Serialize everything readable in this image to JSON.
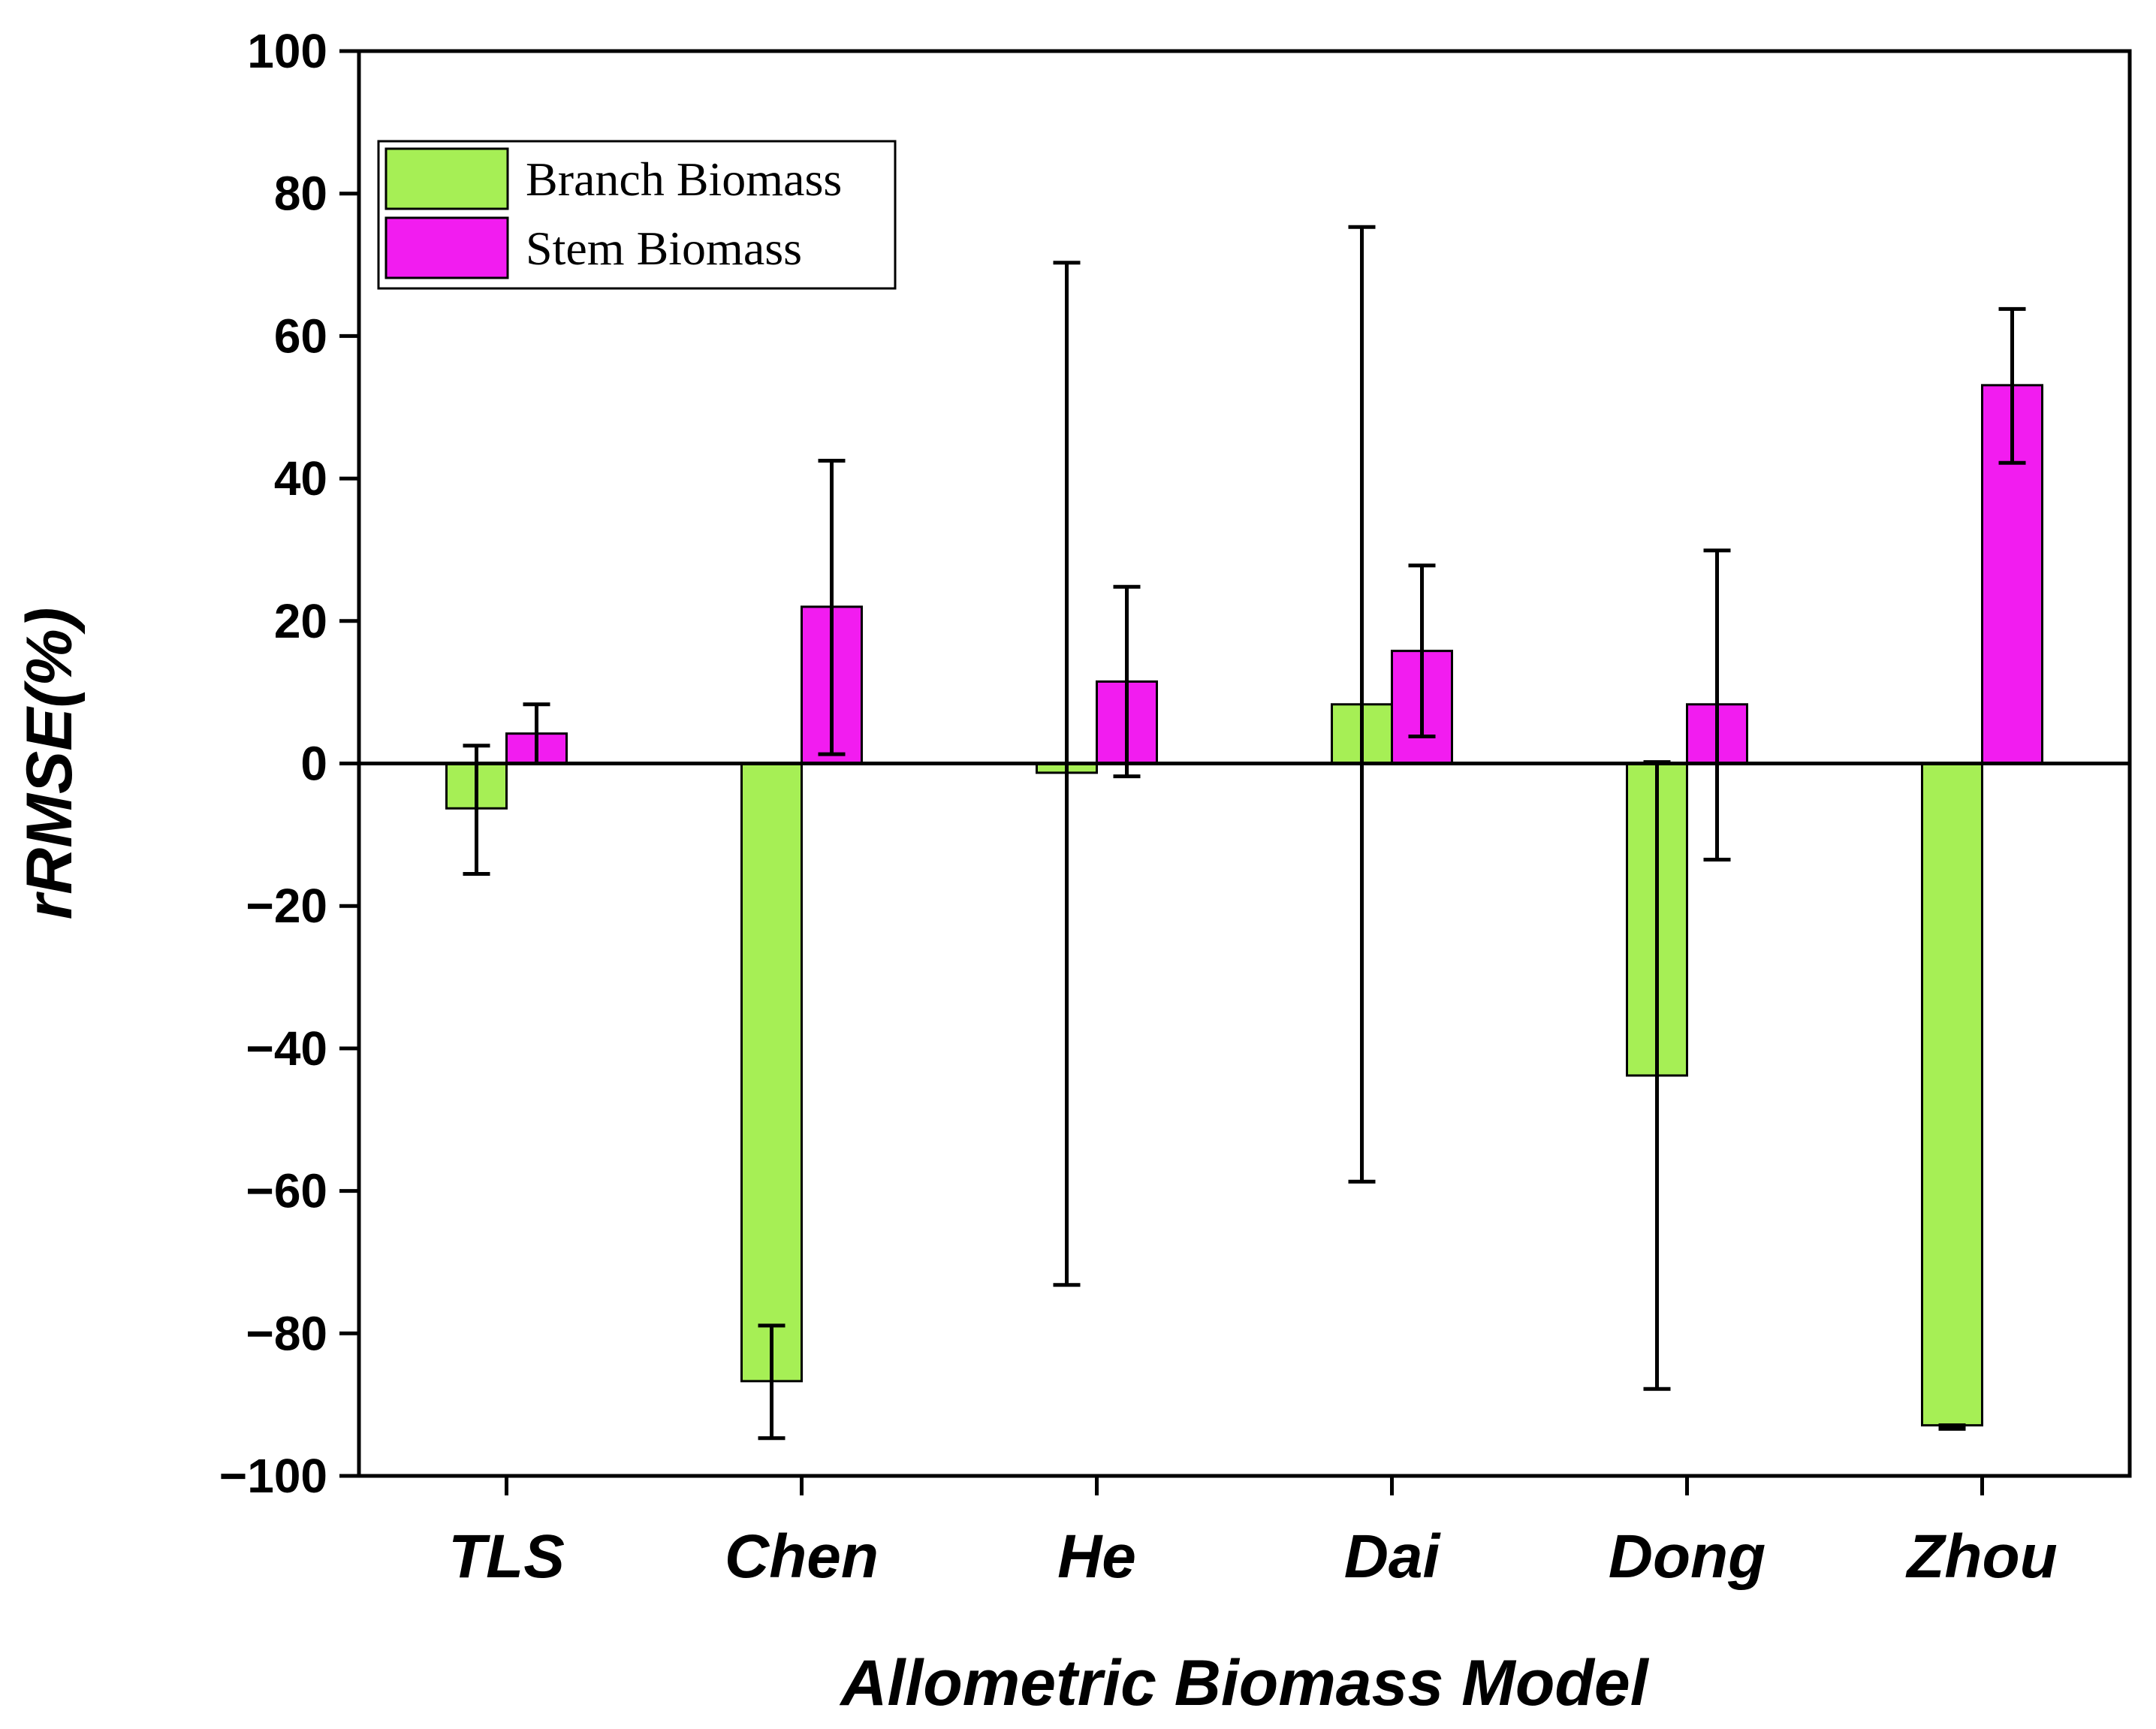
{
  "chart_data": {
    "type": "bar",
    "title": "",
    "xlabel": "Allometric Biomass Model",
    "ylabel": "rRMSE(%)",
    "ylim": [
      -100,
      100
    ],
    "yticks": [
      -100,
      -80,
      -60,
      -40,
      -20,
      0,
      20,
      40,
      60,
      80,
      100
    ],
    "ytick_labels": [
      "−100",
      "−80",
      "−60",
      "−40",
      "−20",
      "0",
      "20",
      "40",
      "60",
      "80",
      "100"
    ],
    "categories": [
      "TLS",
      "Chen",
      "He",
      "Dai",
      "Dong",
      "Zhou"
    ],
    "legend_position": "top-left",
    "grid": false,
    "series": [
      {
        "name": "Branch Biomass",
        "color": "#a6ef55",
        "values": [
          -6.3,
          -86.7,
          -1.3,
          8.3,
          -43.8,
          -92.9
        ],
        "error_low": [
          -15.5,
          -94.7,
          -73.2,
          -58.7,
          -87.8,
          -93.4
        ],
        "error_high": [
          2.5,
          -78.9,
          70.3,
          75.3,
          0.2,
          -92.9
        ]
      },
      {
        "name": "Stem Biomass",
        "color": "#f21cf0",
        "values": [
          4.2,
          22.0,
          11.5,
          15.8,
          8.3,
          53.1
        ],
        "error_low": [
          0.0,
          1.3,
          -1.8,
          3.8,
          -13.5,
          42.2
        ],
        "error_high": [
          8.3,
          42.5,
          24.8,
          27.8,
          29.9,
          63.8
        ]
      }
    ]
  }
}
